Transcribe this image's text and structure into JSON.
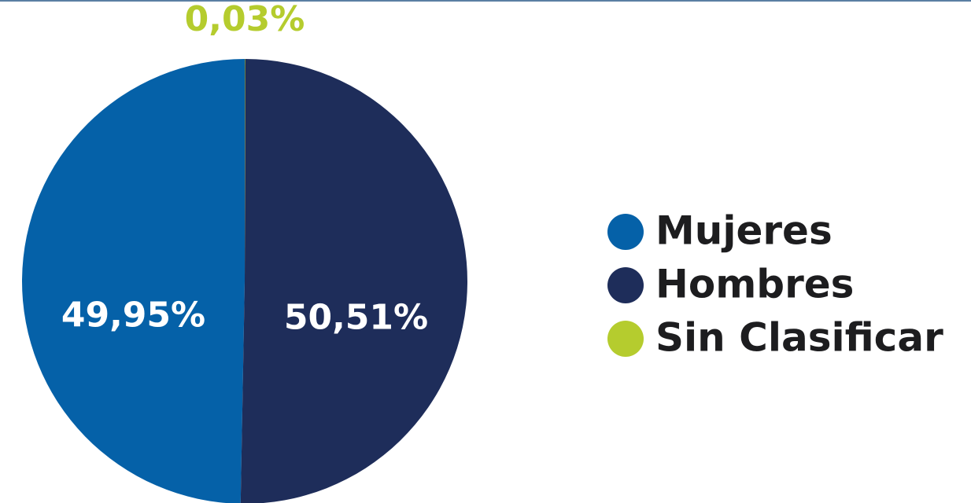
{
  "chart_data": {
    "type": "pie",
    "categories": [
      "Mujeres",
      "Hombres",
      "Sin Clasificar"
    ],
    "values": [
      49.95,
      50.51,
      0.03
    ],
    "value_labels": [
      "49,95%",
      "50,51%",
      "0,03%"
    ],
    "colors": [
      "#0561a8",
      "#1e2d5a",
      "#b5cc2e"
    ],
    "legend": "right"
  }
}
